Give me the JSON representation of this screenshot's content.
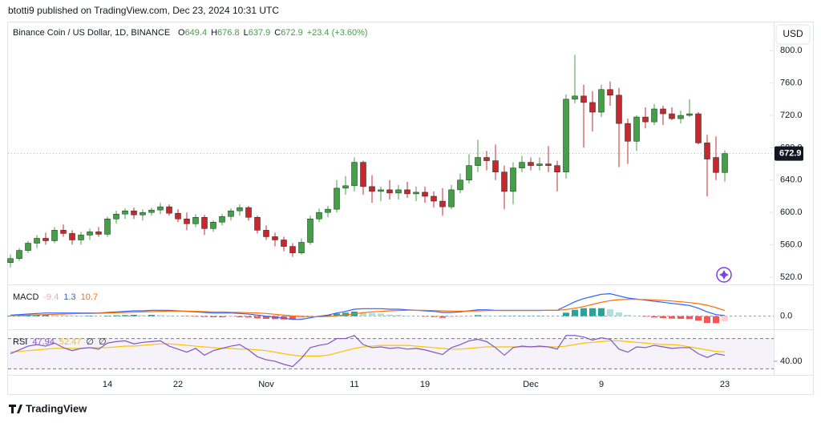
{
  "chart_data": {
    "type": "candlestick",
    "header": "btotti9 published on TradingView.com, Dec 23, 2024 10:31 UTC",
    "title": "Binance Coin / US Dollar, 1D, BINANCE",
    "ohlc_legend": {
      "open_label": "O",
      "open": 649.4,
      "high_label": "H",
      "high": 676.8,
      "low_label": "L",
      "low": 637.9,
      "close_label": "C",
      "close": 672.9,
      "change": "+23.4 (+3.60%)"
    },
    "currency": "USD",
    "last_price": 672.9,
    "brand": "TradingView",
    "up_color": "#43a047",
    "down_color": "#c62830",
    "categories": [
      null,
      null,
      null,
      null,
      null,
      null,
      null,
      null,
      null,
      null,
      null,
      "14",
      null,
      null,
      null,
      null,
      null,
      null,
      null,
      "22",
      null,
      null,
      null,
      null,
      null,
      null,
      null,
      null,
      null,
      "Nov",
      null,
      null,
      null,
      null,
      null,
      null,
      null,
      null,
      null,
      "11",
      null,
      null,
      null,
      null,
      null,
      null,
      null,
      "19",
      null,
      null,
      null,
      null,
      null,
      null,
      null,
      null,
      null,
      null,
      null,
      "Dec",
      null,
      null,
      null,
      null,
      null,
      null,
      null,
      "9",
      null,
      null,
      null,
      null,
      null,
      null,
      null,
      null,
      null,
      null,
      null,
      null,
      null,
      "23"
    ],
    "open": [
      538,
      543,
      553,
      562,
      568,
      565,
      578,
      574,
      566,
      572,
      576,
      573,
      592,
      598,
      602,
      597,
      600,
      603,
      607,
      599,
      592,
      586,
      594,
      580,
      588,
      595,
      602,
      606,
      594,
      578,
      570,
      566,
      558,
      550,
      563,
      592,
      600,
      604,
      630,
      633,
      662,
      632,
      626,
      628,
      624,
      628,
      623,
      625,
      620,
      614,
      607,
      628,
      640,
      658,
      668,
      664,
      650,
      626,
      655,
      662,
      658,
      660,
      658,
      650,
      740,
      744,
      736,
      724,
      752,
      745,
      710,
      688,
      718,
      712,
      728,
      722,
      716,
      720,
      722,
      686,
      668,
      649.4
    ],
    "high": [
      548,
      556,
      565,
      572,
      575,
      582,
      585,
      578,
      576,
      580,
      582,
      595,
      602,
      605,
      606,
      604,
      606,
      612,
      610,
      604,
      600,
      598,
      597,
      590,
      598,
      605,
      610,
      608,
      596,
      584,
      575,
      570,
      562,
      568,
      596,
      605,
      608,
      640,
      645,
      668,
      664,
      646,
      632,
      640,
      634,
      638,
      632,
      632,
      626,
      630,
      634,
      648,
      672,
      690,
      676,
      684,
      658,
      662,
      670,
      668,
      668,
      682,
      664,
      746,
      795,
      758,
      750,
      758,
      762,
      754,
      716,
      720,
      730,
      734,
      732,
      730,
      726,
      740,
      724,
      696,
      694,
      676.8
    ],
    "low": [
      532,
      540,
      550,
      556,
      560,
      562,
      570,
      560,
      560,
      566,
      570,
      570,
      586,
      592,
      592,
      590,
      596,
      598,
      596,
      588,
      578,
      582,
      572,
      576,
      584,
      590,
      596,
      590,
      574,
      566,
      558,
      552,
      545,
      548,
      560,
      588,
      594,
      600,
      622,
      626,
      622,
      612,
      614,
      616,
      616,
      618,
      614,
      612,
      606,
      596,
      604,
      624,
      636,
      650,
      652,
      640,
      604,
      610,
      650,
      652,
      652,
      650,
      626,
      642,
      735,
      680,
      700,
      718,
      732,
      656,
      660,
      676,
      704,
      708,
      708,
      714,
      710,
      718,
      684,
      620,
      640,
      637.9
    ],
    "close": [
      543,
      553,
      562,
      568,
      565,
      578,
      574,
      566,
      572,
      576,
      573,
      592,
      598,
      602,
      597,
      600,
      603,
      607,
      599,
      592,
      586,
      594,
      580,
      588,
      595,
      602,
      606,
      594,
      578,
      570,
      566,
      558,
      550,
      563,
      592,
      600,
      604,
      630,
      633,
      662,
      632,
      626,
      628,
      624,
      628,
      623,
      625,
      620,
      614,
      607,
      628,
      640,
      658,
      668,
      664,
      650,
      626,
      655,
      662,
      658,
      660,
      658,
      650,
      740,
      744,
      736,
      724,
      752,
      745,
      710,
      688,
      718,
      712,
      728,
      722,
      716,
      720,
      722,
      686,
      666,
      649.4,
      672.9
    ],
    "ylim": [
      511,
      833
    ],
    "yticks": [
      {
        "value": 520,
        "label": "520.0"
      },
      {
        "value": 560,
        "label": "560.0"
      },
      {
        "value": 600,
        "label": "600.0"
      },
      {
        "value": 640,
        "label": "640.0"
      },
      {
        "value": 680,
        "label": "680.0"
      },
      {
        "value": 720,
        "label": "720.0"
      },
      {
        "value": 760,
        "label": "760.0"
      },
      {
        "value": 800,
        "label": "800.0"
      }
    ],
    "macd": {
      "name": "MACD",
      "ylim": [
        -20,
        55
      ],
      "yticks": [
        {
          "value": 0,
          "label": "0.0"
        }
      ],
      "histogram": {
        "color": "#ef5350",
        "legend": -9.4,
        "values": [
          1,
          1.5,
          2,
          2.5,
          3,
          2.5,
          2,
          1.5,
          1,
          1,
          0.5,
          1,
          1.5,
          2,
          2.5,
          2,
          2.5,
          2,
          1.5,
          0.5,
          -0.5,
          -1,
          -1.5,
          -2,
          -2,
          -1.5,
          -2,
          -2.5,
          -4,
          -5,
          -5.5,
          -6,
          -6.5,
          -5.5,
          -2,
          1,
          2.5,
          5,
          6.5,
          8.5,
          7.5,
          6,
          5,
          3,
          2.5,
          1,
          0,
          -1,
          -1.5,
          -3,
          -2.5,
          -1.5,
          0.5,
          2,
          1.5,
          0.5,
          0.5,
          0.5,
          0.5,
          0.5,
          0.5,
          0,
          0,
          6.5,
          12,
          15,
          15,
          15,
          13,
          7,
          2.5,
          0.5,
          -1,
          -2.5,
          -3.5,
          -4.5,
          -5,
          -5.5,
          -8.5,
          -12.5,
          -13,
          -9.4
        ]
      },
      "line": {
        "color": "#2962ff",
        "legend": 1.3,
        "values": [
          2,
          3,
          4,
          5,
          6,
          6,
          6,
          6,
          6,
          6,
          6,
          7,
          8,
          9,
          10,
          10,
          11,
          11,
          11,
          10,
          9,
          8,
          7,
          6,
          6,
          6,
          5,
          4,
          2,
          0,
          -2,
          -4,
          -6,
          -6,
          -3,
          0,
          2,
          6,
          9,
          13,
          14,
          14,
          14,
          13,
          13,
          12,
          11,
          10,
          9,
          7,
          7,
          8,
          10,
          12,
          12,
          11,
          11,
          11,
          11,
          11,
          11,
          11,
          11,
          19,
          27,
          33,
          37,
          41,
          42,
          38,
          34,
          32,
          30,
          28,
          26,
          24,
          22,
          20,
          15,
          8,
          3,
          1.3
        ]
      },
      "signal": {
        "color": "#ff6d00",
        "legend": 10.7,
        "values": [
          1,
          1.5,
          2,
          2.5,
          3,
          3.5,
          4,
          4.5,
          5,
          5,
          5.5,
          6,
          6.5,
          7,
          7.5,
          8,
          8.5,
          9,
          9.5,
          9.5,
          9.5,
          9,
          8.5,
          8,
          8,
          7.5,
          7,
          6.5,
          6,
          5,
          3.5,
          2,
          0.5,
          -0.5,
          -1,
          -1,
          -0.5,
          1,
          2.5,
          4.5,
          6.5,
          8,
          9,
          10,
          10.5,
          11,
          11,
          11,
          10.5,
          10,
          9.5,
          9.5,
          9.5,
          10,
          10.5,
          10.5,
          10.5,
          10.5,
          10.5,
          10.5,
          10.5,
          11,
          11,
          12.5,
          15,
          18,
          22,
          26,
          29,
          31,
          31.5,
          31.5,
          31,
          30.5,
          29.5,
          28.5,
          27,
          25.5,
          23.5,
          20.5,
          16,
          10.7
        ]
      }
    },
    "rsi": {
      "name": "RSI",
      "ylim": [
        22,
        78
      ],
      "yticks": [
        {
          "value": 40,
          "label": "40.00"
        }
      ],
      "bands": [
        30,
        70
      ],
      "line": {
        "color": "#7e57c2",
        "legend": 47.94,
        "values": [
          50,
          55,
          60,
          62,
          60,
          64,
          58,
          54,
          57,
          58,
          56,
          64,
          66,
          67,
          63,
          65,
          66,
          67,
          60,
          56,
          52,
          57,
          48,
          54,
          57,
          60,
          62,
          55,
          46,
          42,
          40,
          36,
          33,
          44,
          58,
          61,
          63,
          70,
          70,
          74,
          62,
          58,
          59,
          57,
          58,
          56,
          57,
          55,
          52,
          49,
          58,
          62,
          67,
          69,
          66,
          58,
          48,
          58,
          60,
          59,
          60,
          59,
          56,
          74,
          74,
          72,
          68,
          71,
          69,
          56,
          52,
          59,
          58,
          61,
          59,
          57,
          58,
          58,
          50,
          45,
          50,
          47.94
        ]
      },
      "ma": {
        "color": "#f9c300",
        "legend": 52.47,
        "values": [
          52,
          53,
          54,
          55,
          56,
          57,
          57,
          57,
          57,
          58,
          58,
          58,
          59,
          60,
          60,
          61,
          62,
          63,
          63,
          62,
          61,
          60,
          59,
          58,
          57,
          57,
          56,
          56,
          55,
          54,
          52,
          50,
          48,
          47,
          47,
          47,
          48,
          51,
          54,
          57,
          59,
          60,
          61,
          61,
          61,
          61,
          60,
          59,
          58,
          57,
          56,
          56,
          57,
          58,
          59,
          59,
          59,
          59,
          59,
          59,
          59,
          59,
          59,
          60,
          62,
          64,
          65,
          66,
          67,
          67,
          66,
          65,
          64,
          63,
          62,
          62,
          61,
          59,
          57,
          55,
          53,
          52.47
        ]
      },
      "extras": [
        "∅",
        "∅"
      ]
    }
  }
}
